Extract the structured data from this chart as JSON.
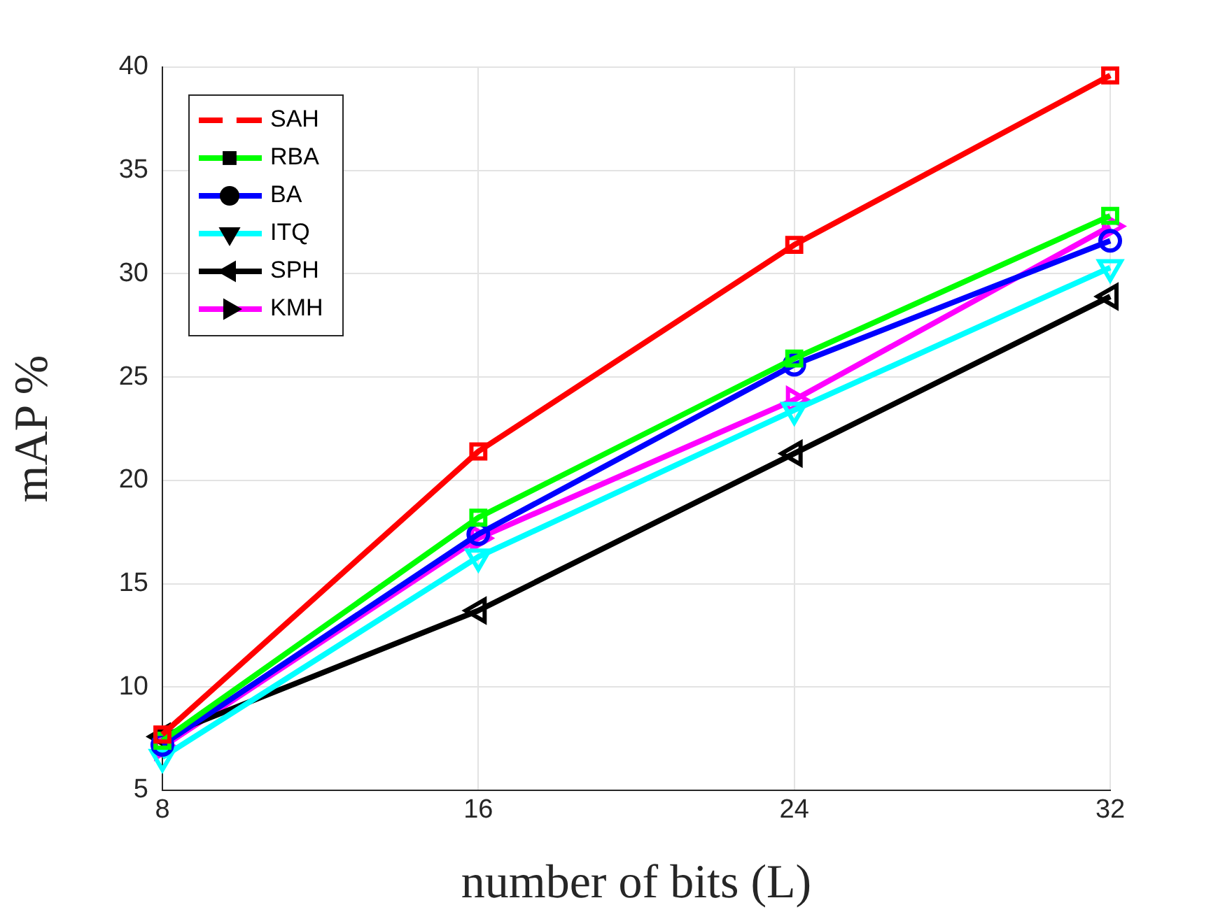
{
  "chart_data": {
    "type": "line",
    "xlabel": "number of bits (L)",
    "ylabel": "mAP %",
    "x": [
      8,
      16,
      24,
      32
    ],
    "xlim": [
      8,
      32
    ],
    "xticks": [
      8,
      16,
      24,
      32
    ],
    "ylim": [
      5,
      40
    ],
    "yticks": [
      5,
      10,
      15,
      20,
      25,
      30,
      35,
      40
    ],
    "grid": true,
    "legend": "top left",
    "line_style": "solid",
    "series": [
      {
        "name": "SAH",
        "color": "#ff0000",
        "marker": "square",
        "values": [
          7.7,
          21.4,
          31.4,
          39.6
        ]
      },
      {
        "name": "RBA",
        "color": "#00ff00",
        "marker": "square",
        "values": [
          7.4,
          18.2,
          25.9,
          32.8
        ]
      },
      {
        "name": "BA",
        "color": "#0000ff",
        "marker": "circle",
        "values": [
          7.2,
          17.4,
          25.6,
          31.6
        ]
      },
      {
        "name": "ITQ",
        "color": "#00ffff",
        "marker": "triangle-down",
        "values": [
          6.6,
          16.3,
          23.4,
          30.3
        ]
      },
      {
        "name": "SPH",
        "color": "#000000",
        "marker": "triangle-left",
        "values": [
          7.6,
          13.7,
          21.3,
          28.9
        ]
      },
      {
        "name": "KMH",
        "color": "#ff00ff",
        "marker": "triangle-right",
        "values": [
          7.1,
          17.2,
          23.9,
          32.3
        ]
      }
    ]
  }
}
